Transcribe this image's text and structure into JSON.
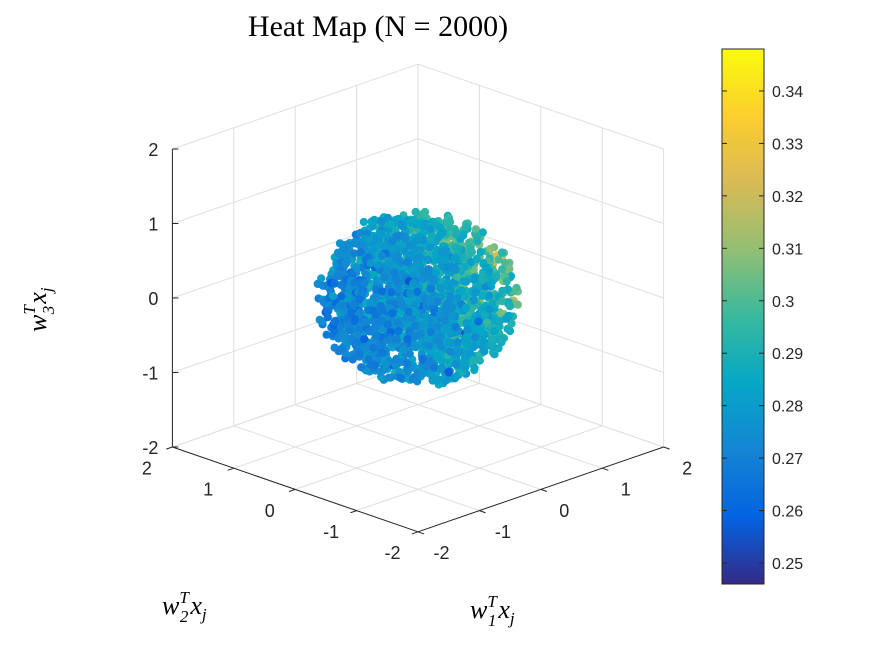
{
  "chart_data": {
    "type": "scatter",
    "title": "Heat Map (N = 2000)",
    "xlabel": {
      "base": "w",
      "sup": "T",
      "sub": "1",
      "tail": "x",
      "tailsub": "j"
    },
    "ylabel": {
      "base": "w",
      "sup": "T",
      "sub": "2",
      "tail": "x",
      "tailsub": "j"
    },
    "zlabel": {
      "base": "w",
      "sup": "T",
      "sub": "3",
      "tail": "x",
      "tailsub": "j"
    },
    "xlim": [
      -2,
      2
    ],
    "ylim": [
      -2,
      2
    ],
    "zlim": [
      -2,
      2
    ],
    "x_ticks": [
      "-2",
      "-1",
      "0",
      "1",
      "2"
    ],
    "y_ticks": [
      "-2",
      "-1",
      "0",
      "1",
      "2"
    ],
    "z_ticks": [
      "-2",
      "-1",
      "0",
      "1",
      "2"
    ],
    "grid": true,
    "n_points": 2000,
    "colormap": "parula",
    "clim": [
      0.246,
      0.348
    ],
    "colorbar_ticks": [
      "0.25",
      "0.26",
      "0.27",
      "0.28",
      "0.29",
      "0.3",
      "0.31",
      "0.32",
      "0.33",
      "0.34"
    ],
    "colorbar_tick_values": [
      0.25,
      0.26,
      0.27,
      0.28,
      0.29,
      0.3,
      0.31,
      0.32,
      0.33,
      0.34
    ],
    "point_distribution": "roughly spherical cloud of radius ~1.1 centered at origin; values near 0.28 in the core, rising toward 0.33-0.35 on the +x1 side",
    "color_scale": [
      "#352a87",
      "#0363e1",
      "#1485d4",
      "#06a7c6",
      "#38b99e",
      "#92bf73",
      "#d9ba56",
      "#fcce2e",
      "#f9fb0e"
    ]
  }
}
